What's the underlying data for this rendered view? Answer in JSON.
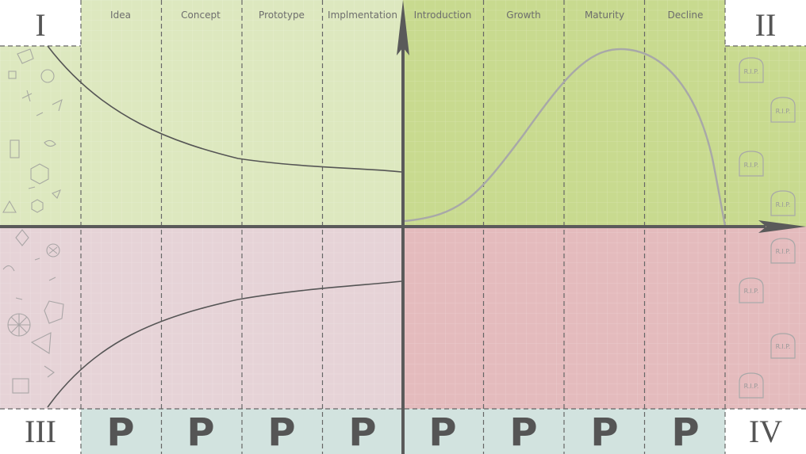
{
  "quadrants": {
    "top_left": "I",
    "top_right": "II",
    "bottom_left": "III",
    "bottom_right": "IV"
  },
  "development_stages": [
    "Idea",
    "Concept",
    "Prototype",
    "Implmentation"
  ],
  "life_cycle_stages": [
    "Introduction",
    "Growth",
    "Maturity",
    "Decline"
  ],
  "bottom_row_letters": [
    "P",
    "P",
    "P",
    "P",
    "P",
    "P",
    "P",
    "P"
  ],
  "tombstone_label": "R.I.P.",
  "colors": {
    "green_light": "#dde8bf",
    "green_dark": "#c8da8f",
    "pink_light": "#e6d3d7",
    "pink_dark": "#e4bbbd",
    "teal_row": "#d2e3df",
    "axis": "#5a5a5a",
    "curve_dark": "#555555",
    "curve_light": "#a8a8a8"
  }
}
